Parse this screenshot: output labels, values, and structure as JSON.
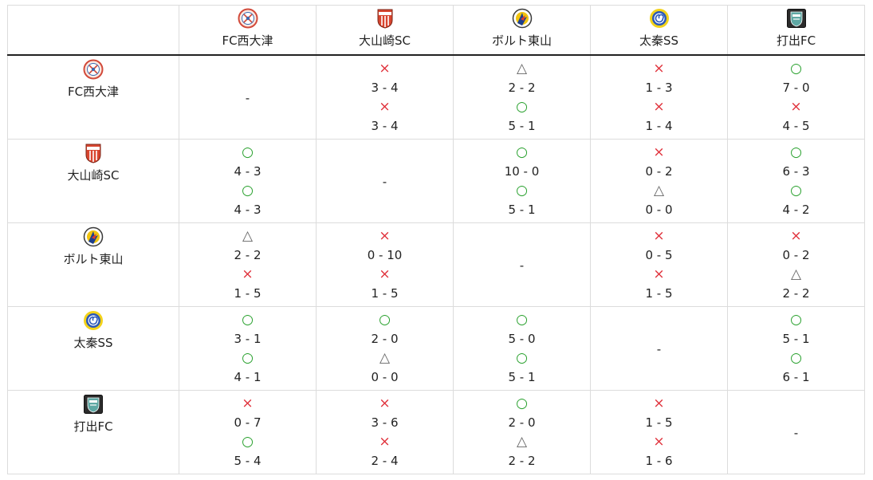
{
  "teams": [
    {
      "name": "FC西大津",
      "logo": "fc-nishiotsu-logo"
    },
    {
      "name": "大山崎SC",
      "logo": "oyamazaki-sc-logo"
    },
    {
      "name": "ボルト東山",
      "logo": "bolt-higashiyama-logo"
    },
    {
      "name": "太秦SS",
      "logo": "uzumasa-ss-logo"
    },
    {
      "name": "打出FC",
      "logo": "uchide-fc-logo"
    }
  ],
  "symbols": {
    "win": "○",
    "loss": "×",
    "draw": "△"
  },
  "self_match": "-",
  "results": [
    [
      null,
      [
        {
          "r": "loss",
          "s": "3 - 4"
        },
        {
          "r": "loss",
          "s": "3 - 4"
        }
      ],
      [
        {
          "r": "draw",
          "s": "2 - 2"
        },
        {
          "r": "win",
          "s": "5 - 1"
        }
      ],
      [
        {
          "r": "loss",
          "s": "1 - 3"
        },
        {
          "r": "loss",
          "s": "1 - 4"
        }
      ],
      [
        {
          "r": "win",
          "s": "7 - 0"
        },
        {
          "r": "loss",
          "s": "4 - 5"
        }
      ]
    ],
    [
      [
        {
          "r": "win",
          "s": "4 - 3"
        },
        {
          "r": "win",
          "s": "4 - 3"
        }
      ],
      null,
      [
        {
          "r": "win",
          "s": "10 - 0"
        },
        {
          "r": "win",
          "s": "5 - 1"
        }
      ],
      [
        {
          "r": "loss",
          "s": "0 - 2"
        },
        {
          "r": "draw",
          "s": "0 - 0"
        }
      ],
      [
        {
          "r": "win",
          "s": "6 - 3"
        },
        {
          "r": "win",
          "s": "4 - 2"
        }
      ]
    ],
    [
      [
        {
          "r": "draw",
          "s": "2 - 2"
        },
        {
          "r": "loss",
          "s": "1 - 5"
        }
      ],
      [
        {
          "r": "loss",
          "s": "0 - 10"
        },
        {
          "r": "loss",
          "s": "1 - 5"
        }
      ],
      null,
      [
        {
          "r": "loss",
          "s": "0 - 5"
        },
        {
          "r": "loss",
          "s": "1 - 5"
        }
      ],
      [
        {
          "r": "loss",
          "s": "0 - 2"
        },
        {
          "r": "draw",
          "s": "2 - 2"
        }
      ]
    ],
    [
      [
        {
          "r": "win",
          "s": "3 - 1"
        },
        {
          "r": "win",
          "s": "4 - 1"
        }
      ],
      [
        {
          "r": "win",
          "s": "2 - 0"
        },
        {
          "r": "draw",
          "s": "0 - 0"
        }
      ],
      [
        {
          "r": "win",
          "s": "5 - 0"
        },
        {
          "r": "win",
          "s": "5 - 1"
        }
      ],
      null,
      [
        {
          "r": "win",
          "s": "5 - 1"
        },
        {
          "r": "win",
          "s": "6 - 1"
        }
      ]
    ],
    [
      [
        {
          "r": "loss",
          "s": "0 - 7"
        },
        {
          "r": "win",
          "s": "5 - 4"
        }
      ],
      [
        {
          "r": "loss",
          "s": "3 - 6"
        },
        {
          "r": "loss",
          "s": "2 - 4"
        }
      ],
      [
        {
          "r": "win",
          "s": "2 - 0"
        },
        {
          "r": "draw",
          "s": "2 - 2"
        }
      ],
      [
        {
          "r": "loss",
          "s": "1 - 5"
        },
        {
          "r": "loss",
          "s": "1 - 6"
        }
      ],
      null
    ]
  ]
}
